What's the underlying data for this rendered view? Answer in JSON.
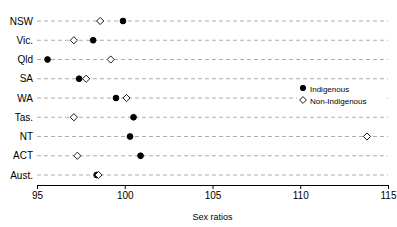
{
  "chart_data": {
    "type": "scatter",
    "x_label": "Sex ratios",
    "categories": [
      "NSW",
      "Vic.",
      "Qld",
      "SA",
      "WA",
      "Tas.",
      "NT",
      "ACT",
      "Aust."
    ],
    "series": [
      {
        "name": "Indigenous",
        "color": "#000000",
        "marker": "circle",
        "values": [
          99.9,
          98.2,
          95.6,
          97.4,
          99.5,
          100.5,
          100.3,
          100.9,
          98.4
        ]
      },
      {
        "name": "Non-Indigenous",
        "color": "#000000",
        "marker": "diamond-open",
        "values": [
          98.6,
          97.1,
          99.2,
          97.8,
          100.1,
          97.1,
          113.8,
          97.3,
          98.5
        ]
      }
    ],
    "orientation": "horizontal",
    "xlim": [
      95,
      115
    ],
    "xticks": [
      95,
      100,
      105,
      110,
      115
    ],
    "grid": true,
    "legend": "right"
  }
}
